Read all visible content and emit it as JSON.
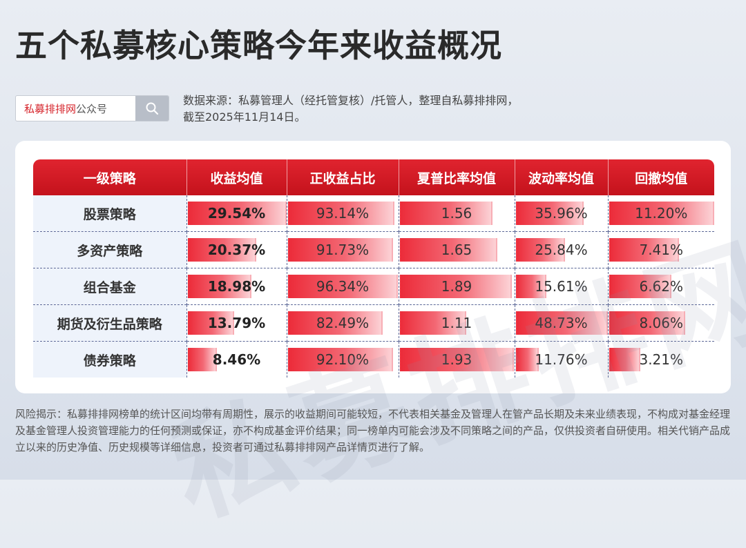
{
  "title": "五个私募核心策略今年来收益概况",
  "search": {
    "brand": "私募排排网",
    "suffix": "公众号",
    "icon": "search-icon"
  },
  "source_line1": "数据来源：私募管理人（经托管复核）/托管人，整理自私募排排网，",
  "source_line2": "截至2025年11月14日。",
  "watermark": "私募排排网",
  "disclaimer": "风险揭示：私募排排网榜单的统计区间均带有周期性，展示的收益期间可能较短，不代表相关基金及管理人在管产品长期及未来业绩表现，不构成对基金经理及基金管理人投资管理能力的任何预测或保证，亦不构成基金评价结果；同一榜单内可能会涉及不同策略之间的产品，仅供投资者自研使用。相关代销产品成立以来的历史净值、历史规模等详细信息，投资者可通过私募排排网产品详情页进行了解。",
  "colors": {
    "header_red": "#d61a24",
    "bar_start": "#ec2b39",
    "bar_end": "#fcd2d6"
  },
  "chart_data": {
    "type": "table",
    "headers": [
      "一级策略",
      "收益均值",
      "正收益占比",
      "夏普比率均值",
      "波动率均值",
      "回撤均值"
    ],
    "rows": [
      {
        "strategy": "股票策略",
        "cells": [
          "29.54%",
          "93.14%",
          "1.56",
          "35.96%",
          "11.20%"
        ]
      },
      {
        "strategy": "多资产策略",
        "cells": [
          "20.37%",
          "91.73%",
          "1.65",
          "25.84%",
          "7.41%"
        ]
      },
      {
        "strategy": "组合基金",
        "cells": [
          "18.98%",
          "96.34%",
          "1.89",
          "15.61%",
          "6.62%"
        ]
      },
      {
        "strategy": "期货及衍生品策略",
        "cells": [
          "13.79%",
          "82.49%",
          "1.11",
          "48.73%",
          "8.06%"
        ]
      },
      {
        "strategy": "债券策略",
        "cells": [
          "8.46%",
          "92.10%",
          "1.93",
          "11.76%",
          "3.21%"
        ]
      }
    ]
  }
}
